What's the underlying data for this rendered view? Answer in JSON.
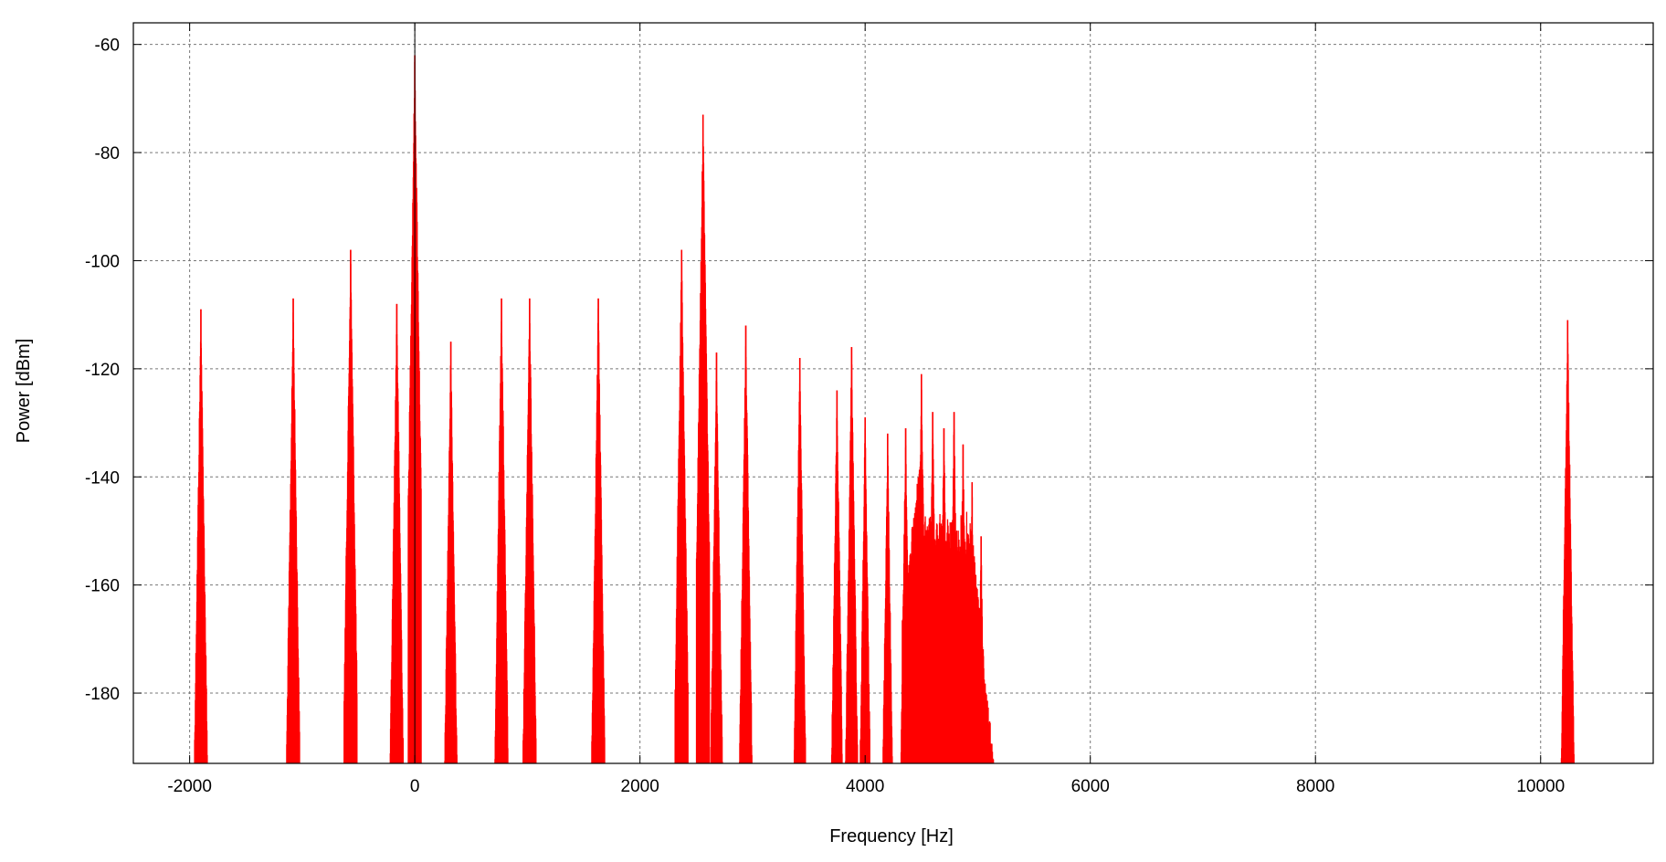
{
  "chart_data": {
    "type": "line",
    "title": "",
    "xlabel": "Frequency [Hz]",
    "ylabel": "Power [dBm]",
    "xlim": [
      -2500,
      11000
    ],
    "ylim": [
      -193,
      -56
    ],
    "x_ticks": [
      -2000,
      0,
      2000,
      4000,
      6000,
      8000,
      10000
    ],
    "x_tick_labels": [
      "-2000",
      "0",
      "2000",
      "4000",
      "6000",
      "8000",
      "10000"
    ],
    "y_ticks": [
      -60,
      -80,
      -100,
      -120,
      -140,
      -160,
      -180
    ],
    "y_tick_labels": [
      "-60",
      "-80",
      "-100",
      "-120",
      "-140",
      "-160",
      "-180"
    ],
    "grid": true,
    "grid_style": "dotted",
    "legend": false,
    "colors": {
      "series": "#ff0000",
      "zero_line": "#000000",
      "grid": "#777777",
      "frame": "#000000"
    },
    "zero_line_x": 0,
    "series": [
      {
        "style": "impulses",
        "peaks": [
          {
            "x": -1900,
            "y": -109
          },
          {
            "x": -1080,
            "y": -107
          },
          {
            "x": -570,
            "y": -98
          },
          {
            "x": -160,
            "y": -108
          },
          {
            "x": 0,
            "y": -62
          },
          {
            "x": 320,
            "y": -115
          },
          {
            "x": 770,
            "y": -107
          },
          {
            "x": 1020,
            "y": -107
          },
          {
            "x": 1630,
            "y": -107
          },
          {
            "x": 2370,
            "y": -98
          },
          {
            "x": 2560,
            "y": -73
          },
          {
            "x": 2680,
            "y": -117
          },
          {
            "x": 2940,
            "y": -112
          },
          {
            "x": 3420,
            "y": -118
          },
          {
            "x": 3750,
            "y": -124
          },
          {
            "x": 3880,
            "y": -116
          },
          {
            "x": 4000,
            "y": -129
          },
          {
            "x": 4200,
            "y": -132
          },
          {
            "x": 4360,
            "y": -131
          },
          {
            "x": 4500,
            "y": -121
          },
          {
            "x": 4600,
            "y": -128
          },
          {
            "x": 4700,
            "y": -131
          },
          {
            "x": 4790,
            "y": -128
          },
          {
            "x": 4870,
            "y": -134
          },
          {
            "x": 4950,
            "y": -141
          },
          {
            "x": 5030,
            "y": -151
          },
          {
            "x": 10240,
            "y": -111
          }
        ]
      }
    ]
  }
}
